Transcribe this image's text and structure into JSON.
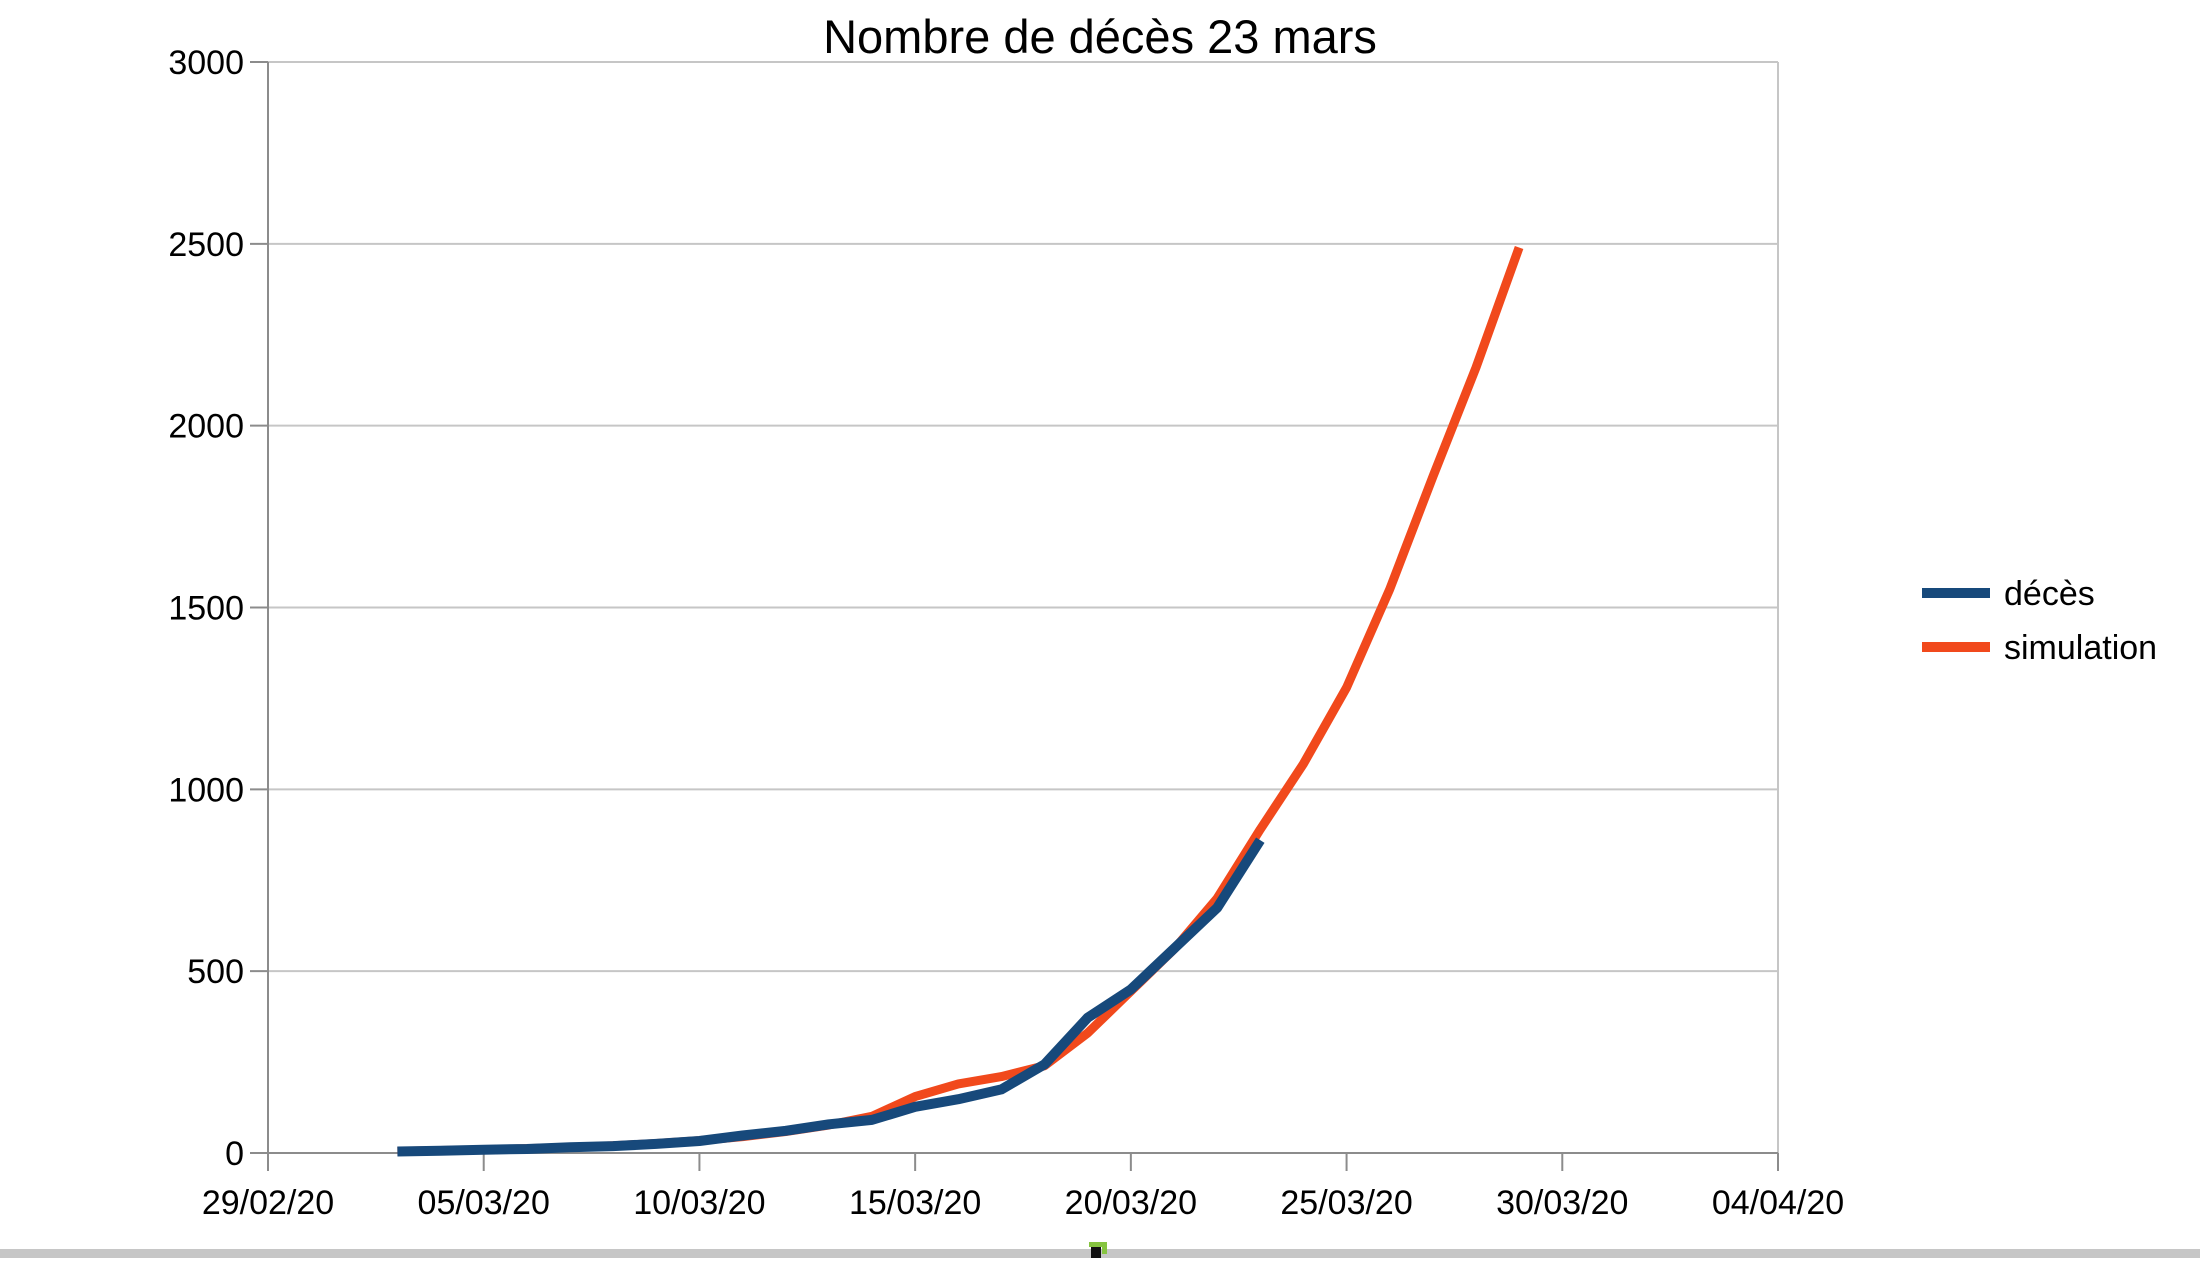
{
  "chart_data": {
    "type": "line",
    "title": "Nombre de décès 23 mars",
    "xlabel": "",
    "ylabel": "",
    "ylim": [
      0,
      3000
    ],
    "y_tick_step": 500,
    "y_tick_labels": [
      "0",
      "500",
      "1000",
      "1500",
      "2000",
      "2500",
      "3000"
    ],
    "x_tick_labels": [
      "29/02/20",
      "05/03/20",
      "10/03/20",
      "15/03/20",
      "20/03/20",
      "25/03/20",
      "30/03/20",
      "04/04/20"
    ],
    "x_tick_days": [
      0,
      5,
      10,
      15,
      20,
      25,
      30,
      35
    ],
    "x_axis_start_date": "29/02/20",
    "grid": "horizontal",
    "legend_position": "right",
    "series": [
      {
        "name": "décès",
        "color": "#17497b",
        "line_width": 10,
        "days": [
          3,
          4,
          5,
          6,
          7,
          8,
          9,
          10,
          11,
          12,
          13,
          14,
          15,
          16,
          17,
          18,
          19,
          20,
          21,
          22,
          23
        ],
        "dates": [
          "03/03/20",
          "04/03/20",
          "05/03/20",
          "06/03/20",
          "07/03/20",
          "08/03/20",
          "09/03/20",
          "10/03/20",
          "11/03/20",
          "12/03/20",
          "13/03/20",
          "14/03/20",
          "15/03/20",
          "16/03/20",
          "17/03/20",
          "18/03/20",
          "19/03/20",
          "20/03/20",
          "21/03/20",
          "22/03/20",
          "23/03/20"
        ],
        "values": [
          4,
          6,
          9,
          11,
          16,
          19,
          25,
          33,
          48,
          61,
          79,
          91,
          127,
          148,
          175,
          244,
          372,
          450,
          562,
          674,
          860
        ]
      },
      {
        "name": "simulation",
        "color": "#f1491c",
        "line_width": 9,
        "days": [
          3,
          4,
          5,
          6,
          7,
          8,
          9,
          10,
          11,
          12,
          13,
          14,
          15,
          16,
          17,
          18,
          19,
          20,
          21,
          22,
          23,
          24,
          25,
          26,
          27,
          28,
          29
        ],
        "dates": [
          "03/03/20",
          "04/03/20",
          "05/03/20",
          "06/03/20",
          "07/03/20",
          "08/03/20",
          "09/03/20",
          "10/03/20",
          "11/03/20",
          "12/03/20",
          "13/03/20",
          "14/03/20",
          "15/03/20",
          "16/03/20",
          "17/03/20",
          "18/03/20",
          "19/03/20",
          "20/03/20",
          "21/03/20",
          "22/03/20",
          "23/03/20",
          "24/03/20",
          "25/03/20",
          "26/03/20",
          "27/03/20",
          "28/03/20",
          "29/03/20"
        ],
        "values": [
          5,
          7,
          9,
          12,
          15,
          20,
          26,
          34,
          45,
          59,
          77,
          101,
          155,
          190,
          210,
          240,
          330,
          445,
          560,
          700,
          890,
          1070,
          1280,
          1550,
          1860,
          2160,
          2490
        ]
      }
    ]
  },
  "decorations": {
    "window_edge_color": "#c6c6c6",
    "anchor_handle_green": "#86c440",
    "anchor_handle_black": "#111111",
    "grid_color": "#c6c6c6",
    "axis_color": "#8c8c8c"
  }
}
